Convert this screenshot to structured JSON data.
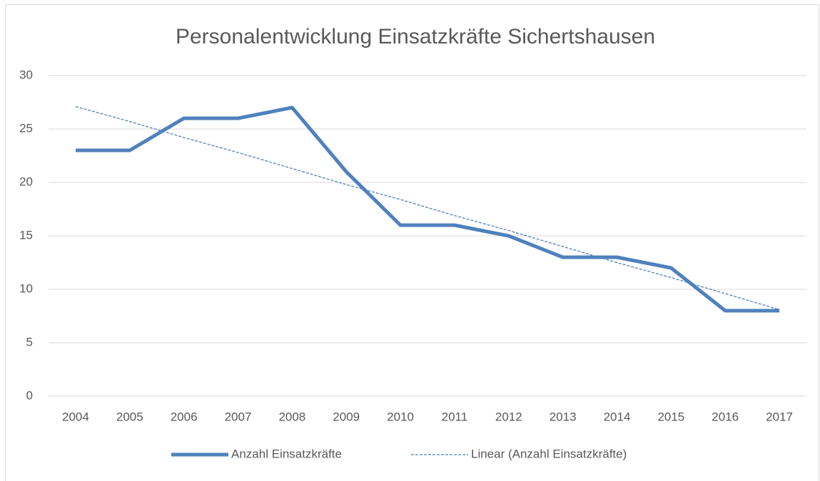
{
  "chart_data": {
    "type": "line",
    "title": "Personalentwicklung Einsatzkräfte Sichertshausen",
    "categories": [
      "2004",
      "2005",
      "2006",
      "2007",
      "2008",
      "2009",
      "2010",
      "2011",
      "2012",
      "2013",
      "2014",
      "2015",
      "2016",
      "2017"
    ],
    "series": [
      {
        "name": "Anzahl Einsatzkräfte",
        "color": "#4f81bd",
        "values": [
          23,
          23,
          26,
          26,
          27,
          21,
          16,
          16,
          15,
          13,
          13,
          12,
          8,
          8
        ]
      },
      {
        "name": "Linear (Anzahl Einsatzkräfte)",
        "color": "#4f81bd",
        "dashed": true,
        "values": [
          27.1,
          25.7,
          24.2,
          22.8,
          21.3,
          19.8,
          18.4,
          16.9,
          15.5,
          14.0,
          12.5,
          11.1,
          9.6,
          8.1
        ]
      }
    ],
    "ylim": [
      0,
      30
    ],
    "yticks": [
      0,
      5,
      10,
      15,
      20,
      25,
      30
    ],
    "grid": true,
    "legend": "bottom"
  }
}
